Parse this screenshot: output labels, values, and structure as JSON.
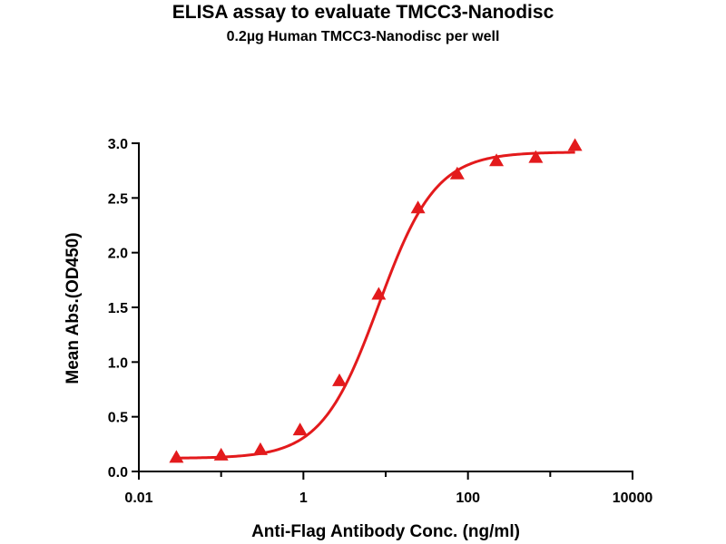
{
  "chart_data": {
    "type": "scatter",
    "title": "ELISA assay to evaluate TMCC3-Nanodisc",
    "subtitle": "0.2µg Human TMCC3-Nanodisc per well",
    "xlabel": "Anti-Flag Antibody Conc. (ng/ml)",
    "ylabel": "Mean Abs.(OD450)",
    "x_scale": "log",
    "xlim": [
      0.01,
      10000
    ],
    "ylim": [
      0,
      3.0
    ],
    "x_ticks": [
      {
        "value": 0.01,
        "label": "0.01"
      },
      {
        "value": 1,
        "label": "1"
      },
      {
        "value": 100,
        "label": "100"
      },
      {
        "value": 10000,
        "label": "10000"
      }
    ],
    "y_ticks": [
      {
        "value": 0.0,
        "label": "0.0"
      },
      {
        "value": 0.5,
        "label": "0.5"
      },
      {
        "value": 1.0,
        "label": "1.0"
      },
      {
        "value": 1.5,
        "label": "1.5"
      },
      {
        "value": 2.0,
        "label": "2.0"
      },
      {
        "value": 2.5,
        "label": "2.5"
      },
      {
        "value": 3.0,
        "label": "3.0"
      }
    ],
    "grid": false,
    "legend": "none",
    "series": [
      {
        "marker": "triangle",
        "color": "#e31a1c",
        "x": [
          0.0286,
          0.1,
          0.3,
          0.91,
          2.74,
          8.23,
          24.7,
          74.1,
          222,
          667,
          2000
        ],
        "y": [
          0.13,
          0.15,
          0.2,
          0.38,
          0.83,
          1.62,
          2.41,
          2.72,
          2.84,
          2.87,
          2.98
        ]
      }
    ],
    "fit_curve": {
      "color": "#e31a1c",
      "bottom": 0.12,
      "top": 2.92,
      "ec50": 8.2,
      "hill": 1.25
    }
  }
}
